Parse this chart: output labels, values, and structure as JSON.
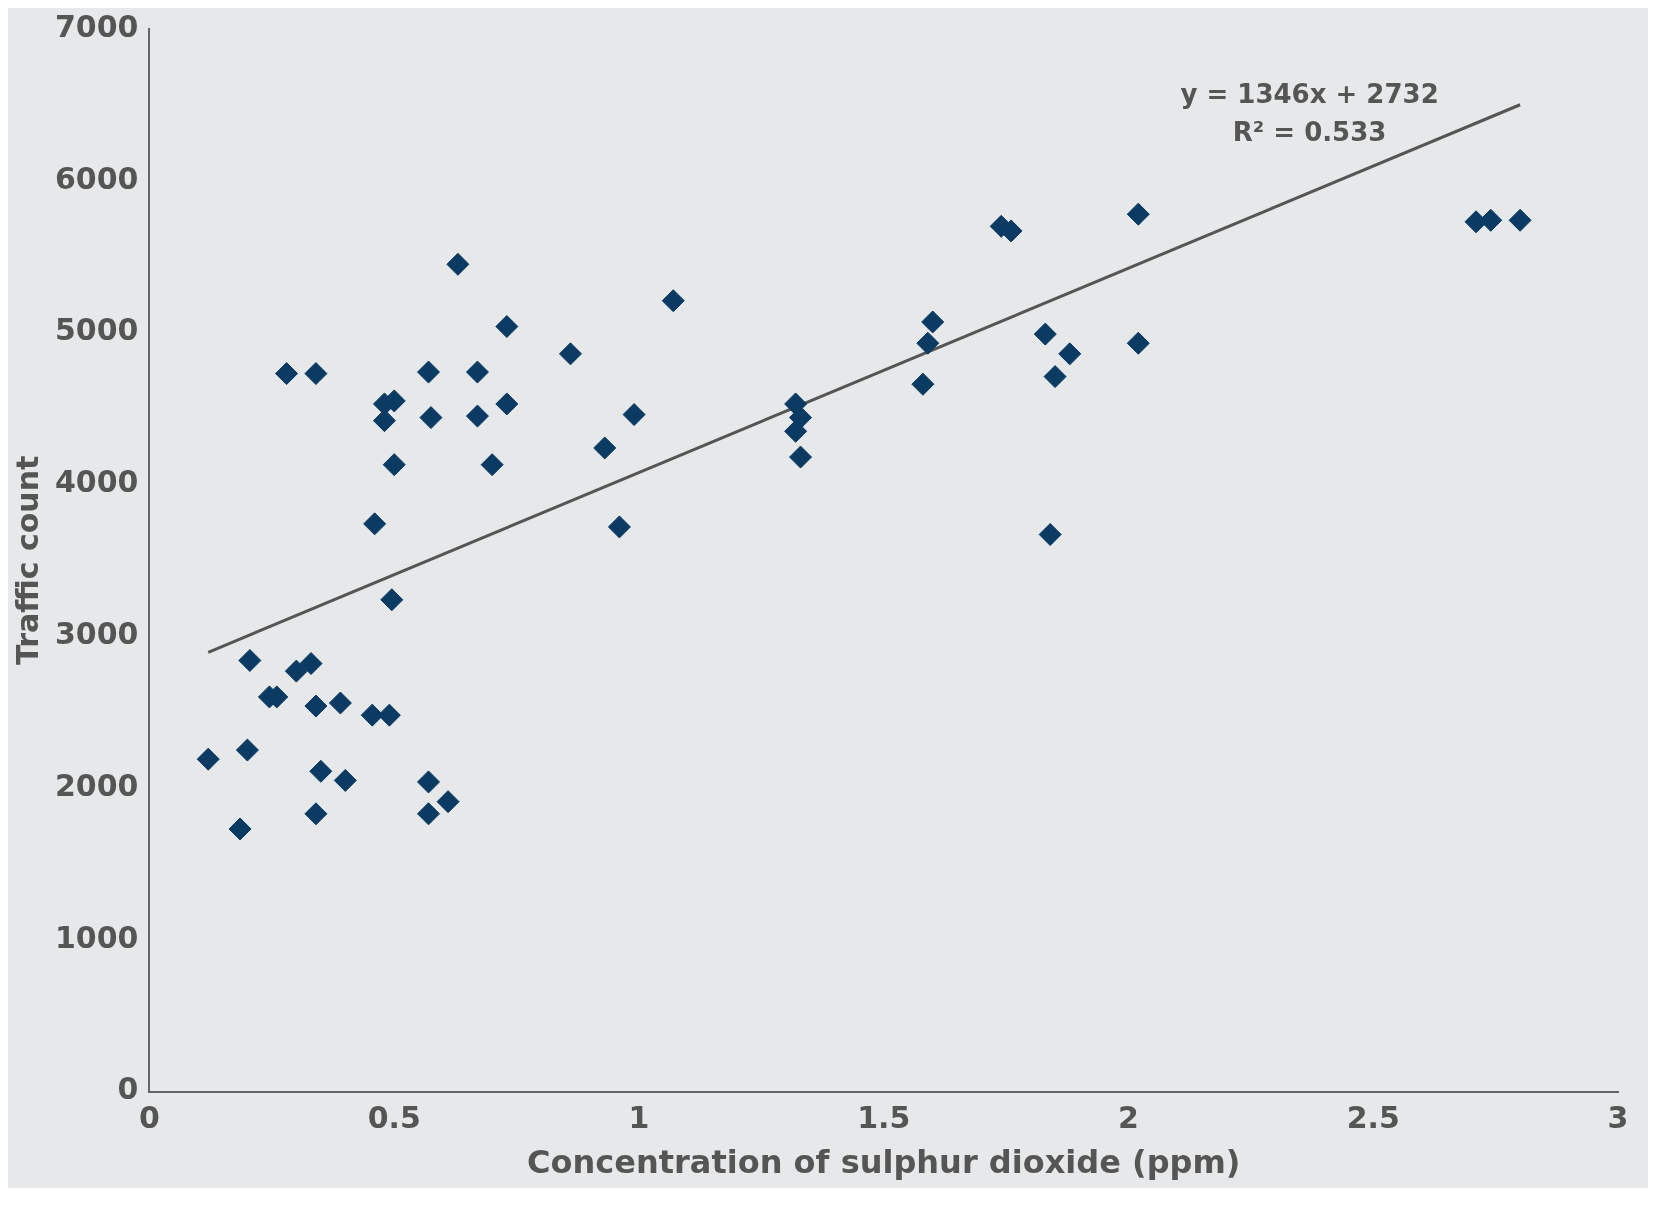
{
  "chart_data": {
    "type": "scatter",
    "xlabel": "Concentration of sulphur dioxide (ppm)",
    "ylabel": "Traffic count",
    "xlim": [
      0,
      3
    ],
    "xticks": [
      0,
      0.5,
      1,
      1.5,
      2,
      2.5,
      3
    ],
    "ylim": [
      0,
      7000
    ],
    "yticks": [
      0,
      1000,
      2000,
      3000,
      4000,
      5000,
      6000,
      7000
    ],
    "grid": false,
    "legend": false,
    "marker": "diamond",
    "annotations": [
      "y = 1346x + 2732",
      "R² = 0.533"
    ],
    "series": [
      {
        "type": "scatter",
        "color": "#0b3a63",
        "x": [
          0.12,
          0.185,
          0.2,
          0.205,
          0.245,
          0.26,
          0.28,
          0.34,
          0.3,
          0.33,
          0.34,
          0.39,
          0.35,
          0.34,
          0.4,
          0.455,
          0.49,
          0.46,
          0.495,
          0.48,
          0.48,
          0.5,
          0.5,
          0.57,
          0.575,
          0.57,
          0.57,
          0.61,
          0.63,
          0.67,
          0.67,
          0.7,
          0.73,
          0.73,
          0.86,
          0.93,
          0.96,
          0.99,
          1.07,
          1.32,
          1.33,
          1.32,
          1.33,
          1.58,
          1.59,
          1.6,
          1.74,
          1.76,
          1.83,
          1.85,
          1.88,
          1.84,
          2.02,
          2.02,
          2.71,
          2.74,
          2.8
        ],
        "values": [
          2190,
          1730,
          2250,
          2840,
          2600,
          2600,
          4730,
          4730,
          2770,
          2820,
          2540,
          2560,
          2110,
          1830,
          2050,
          2480,
          2480,
          3740,
          3240,
          4530,
          4420,
          4550,
          4130,
          4740,
          4440,
          2040,
          1830,
          1910,
          5450,
          4740,
          4450,
          4130,
          4530,
          5040,
          4860,
          4240,
          3720,
          4460,
          5210,
          4530,
          4440,
          4350,
          4180,
          4660,
          4930,
          5070,
          5700,
          5670,
          4990,
          4710,
          4860,
          3670,
          5780,
          4930,
          5730,
          5740,
          5740
        ]
      },
      {
        "type": "line",
        "color": "#555555",
        "marker": "none",
        "x": [
          0.12,
          2.8
        ],
        "values": [
          2894,
          6501
        ]
      }
    ]
  }
}
